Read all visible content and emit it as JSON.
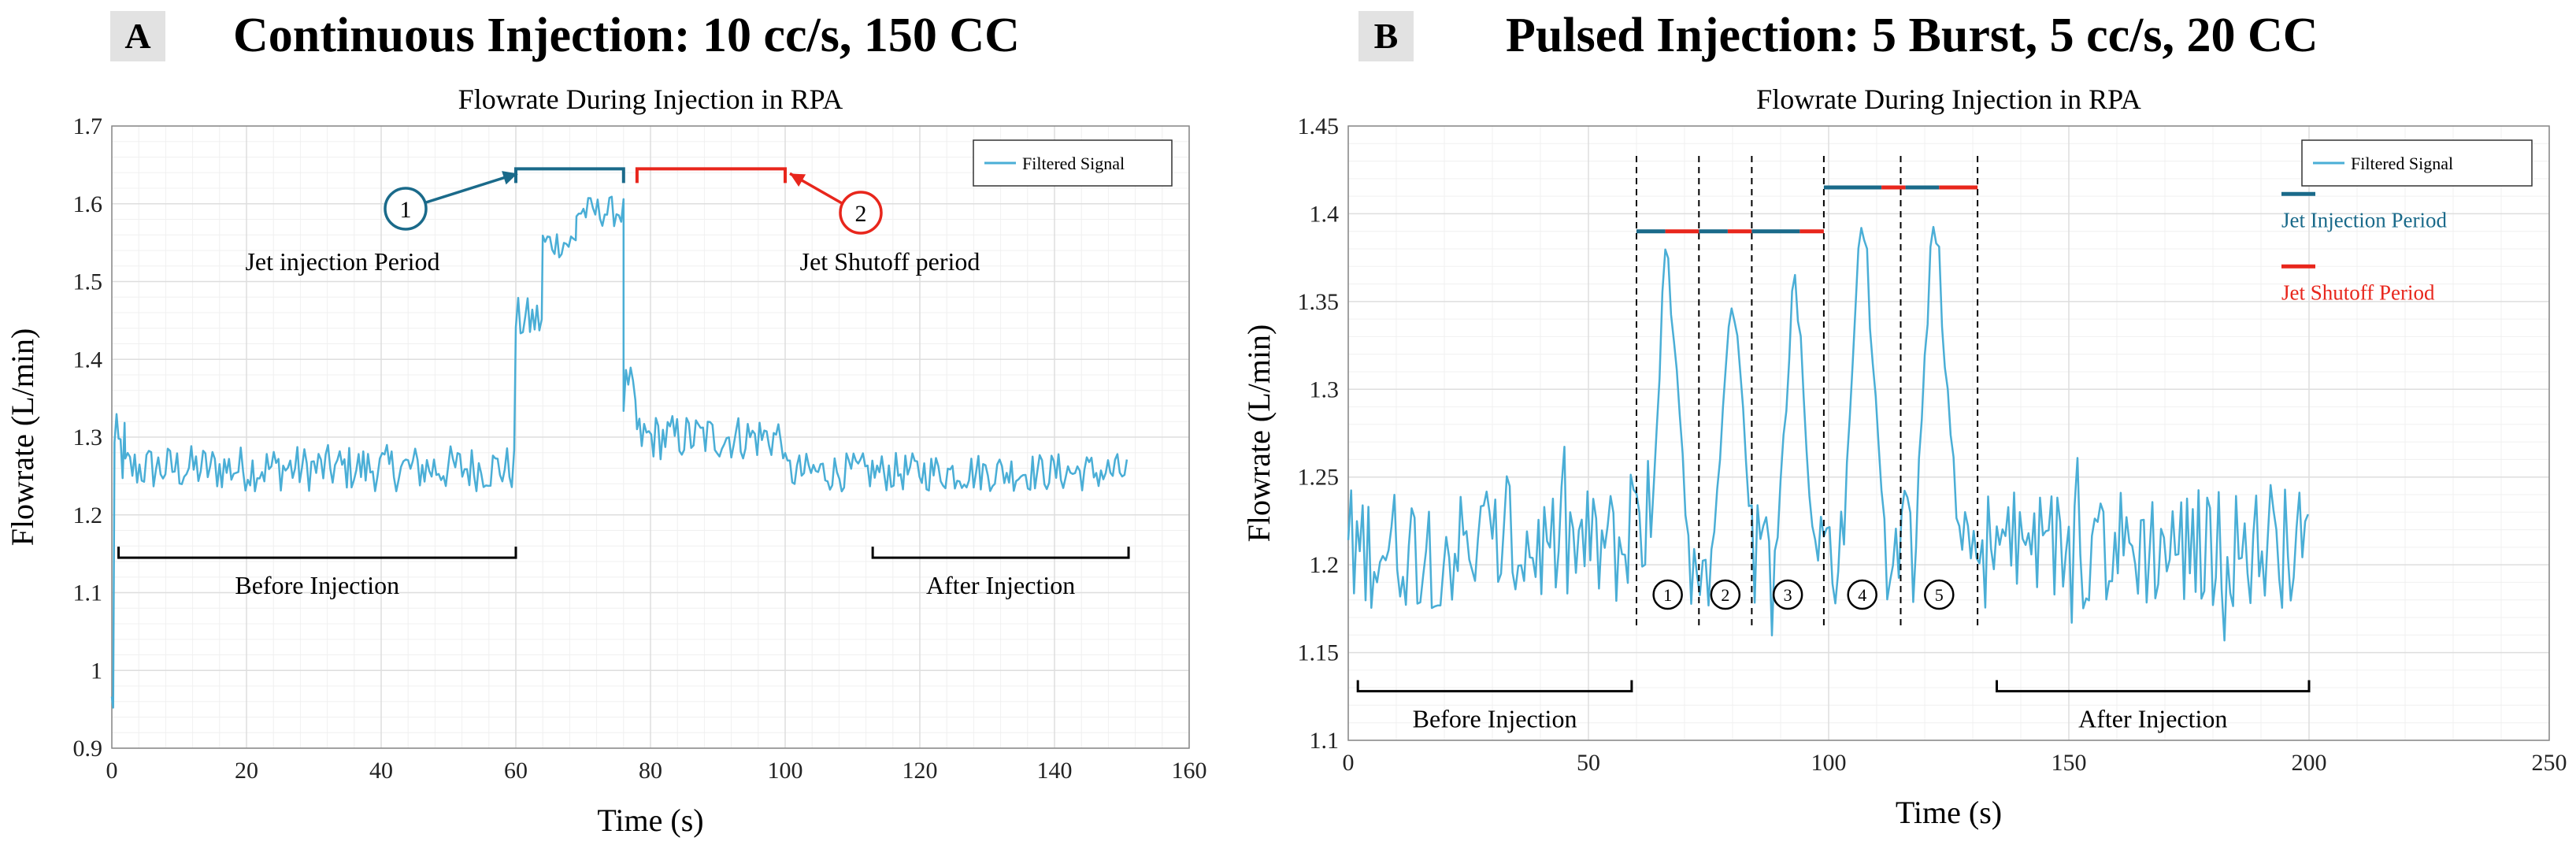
{
  "figure_labels": {
    "panel_a": {
      "letter": "A",
      "title": "Continuous Injection: 10 cc/s, 150 CC"
    },
    "panel_b": {
      "letter": "B",
      "title": "Pulsed Injection: 5 Burst, 5 cc/s, 20 CC"
    }
  },
  "chart_data": [
    {
      "type": "line",
      "title": "Flowrate During Injection in RPA",
      "xlabel": "Time (s)",
      "ylabel": "Flowrate (L/min)",
      "xlim": [
        0,
        160
      ],
      "ylim": [
        0.9,
        1.7
      ],
      "xticks": [
        0,
        20,
        40,
        60,
        80,
        100,
        120,
        140,
        160
      ],
      "yticks": [
        0.9,
        1.0,
        1.1,
        1.2,
        1.3,
        1.4,
        1.5,
        1.6,
        1.7
      ],
      "ytick_labels": [
        "0.9",
        "1",
        "1.1",
        "1.2",
        "1.3",
        "1.4",
        "1.5",
        "1.6",
        "1.7"
      ],
      "legend": {
        "entry": "Filtered Signal",
        "location": "top-right"
      },
      "series": [
        {
          "name": "Filtered Signal",
          "color": "#4aaed6",
          "segments": [
            {
              "t_start": 0,
              "t_end": 0.4,
              "level": 0.96,
              "noise": 0.02,
              "step": 0.2
            },
            {
              "t_start": 0.4,
              "t_end": 2,
              "level": 1.28,
              "noise": 0.05,
              "step": 0.3
            },
            {
              "t_start": 2,
              "t_end": 60,
              "level": 1.26,
              "noise": 0.03,
              "step": 0.35
            },
            {
              "t_start": 60,
              "t_end": 64,
              "level": 1.45,
              "noise": 0.03,
              "step": 0.35
            },
            {
              "t_start": 64,
              "t_end": 69,
              "level": 1.55,
              "noise": 0.02,
              "step": 0.35
            },
            {
              "t_start": 69,
              "t_end": 76,
              "level": 1.59,
              "noise": 0.02,
              "step": 0.35
            },
            {
              "t_start": 76,
              "t_end": 78,
              "level": 1.35,
              "noise": 0.04,
              "step": 0.35
            },
            {
              "t_start": 78,
              "t_end": 100,
              "level": 1.3,
              "noise": 0.03,
              "step": 0.35
            },
            {
              "t_start": 100,
              "t_end": 151,
              "level": 1.255,
              "noise": 0.025,
              "step": 0.35
            }
          ]
        }
      ],
      "annotations": [
        {
          "kind": "period",
          "label": "Jet injection Period",
          "marker": "1",
          "color": "#1a6a8a",
          "x_start": 60,
          "x_end": 76,
          "y": 1.645
        },
        {
          "kind": "period",
          "label": "Jet Shutoff period",
          "marker": "2",
          "color": "#e8261c",
          "x_start": 78,
          "x_end": 100,
          "y": 1.645
        },
        {
          "kind": "bracket",
          "label": "Before Injection",
          "x_start": 1,
          "x_end": 60,
          "y": 1.145
        },
        {
          "kind": "bracket",
          "label": "After Injection",
          "x_start": 113,
          "x_end": 151,
          "y": 1.145
        }
      ]
    },
    {
      "type": "line",
      "title": "Flowrate During Injection in RPA",
      "xlabel": "Time (s)",
      "ylabel": "Flowrate (L/min)",
      "xlim": [
        0,
        250
      ],
      "ylim": [
        1.1,
        1.45
      ],
      "xticks": [
        0,
        50,
        100,
        150,
        200,
        250
      ],
      "yticks": [
        1.1,
        1.15,
        1.2,
        1.25,
        1.3,
        1.35,
        1.4,
        1.45
      ],
      "ytick_labels": [
        "1.1",
        "1.15",
        "1.2",
        "1.25",
        "1.3",
        "1.35",
        "1.4",
        "1.45"
      ],
      "legend": {
        "entry": "Filtered Signal",
        "location": "top-right"
      },
      "series": [
        {
          "name": "Filtered Signal",
          "color": "#4aaed6",
          "base_level": 1.21,
          "noise": 0.035,
          "t_start": 0,
          "t_end": 200,
          "step": 0.6,
          "bursts": [
            {
              "t_start": 63,
              "t_peak": 66,
              "t_end": 71,
              "peak": 1.385
            },
            {
              "t_start": 76,
              "t_peak": 80,
              "t_end": 84,
              "peak": 1.365
            },
            {
              "t_start": 89,
              "t_peak": 93,
              "t_end": 97,
              "peak": 1.37
            },
            {
              "t_start": 103,
              "t_peak": 107,
              "t_end": 112,
              "peak": 1.41
            },
            {
              "t_start": 118,
              "t_peak": 122,
              "t_end": 127,
              "peak": 1.41
            }
          ]
        }
      ],
      "dashed_lines_x": [
        60,
        73,
        84,
        99,
        115,
        131
      ],
      "burst_labels": [
        "1",
        "2",
        "3",
        "4",
        "5"
      ],
      "period_bars": [
        {
          "y": 1.39,
          "x_start": 60,
          "x_end": 99,
          "segments": [
            [
              60,
              66,
              "#1a6a8a"
            ],
            [
              66,
              73,
              "#e8261c"
            ],
            [
              73,
              79,
              "#1a6a8a"
            ],
            [
              79,
              84,
              "#e8261c"
            ],
            [
              84,
              94,
              "#1a6a8a"
            ],
            [
              94,
              99,
              "#e8261c"
            ]
          ]
        },
        {
          "y": 1.415,
          "x_start": 99,
          "x_end": 131,
          "segments": [
            [
              99,
              111,
              "#1a6a8a"
            ],
            [
              111,
              116,
              "#e8261c"
            ],
            [
              116,
              123,
              "#1a6a8a"
            ],
            [
              123,
              131,
              "#e8261c"
            ]
          ]
        }
      ],
      "period_legend": [
        {
          "label": "Jet Injection Period",
          "color": "#1a6a8a"
        },
        {
          "label": "Jet Shutoff Period",
          "color": "#e8261c"
        }
      ],
      "annotations": [
        {
          "kind": "bracket",
          "label": "Before Injection",
          "x_start": 2,
          "x_end": 59,
          "y": 1.128
        },
        {
          "kind": "bracket",
          "label": "After Injection",
          "x_start": 135,
          "x_end": 200,
          "y": 1.128
        }
      ]
    }
  ]
}
